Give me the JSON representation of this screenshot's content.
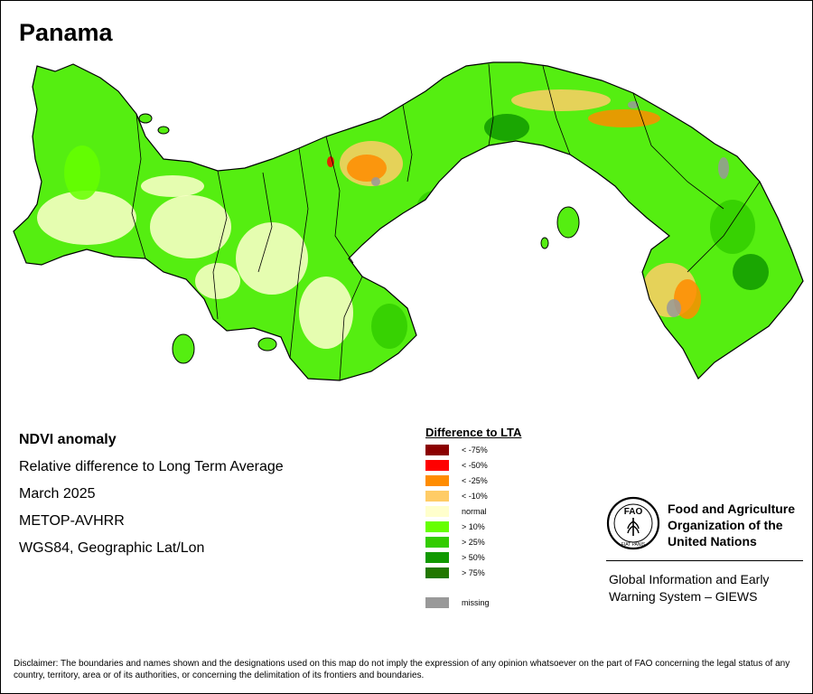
{
  "map": {
    "title": "Panama",
    "country_color": "#55ee11",
    "border_color": "#000000"
  },
  "info": {
    "indicator": "NDVI anomaly",
    "description": "Relative difference to Long Term Average",
    "date": "March 2025",
    "sensor": "METOP-AVHRR",
    "projection": "WGS84, Geographic Lat/Lon"
  },
  "legend": {
    "title": "Difference to LTA",
    "items": [
      {
        "label": "< -75%",
        "color": "#8b0000"
      },
      {
        "label": "< -50%",
        "color": "#ff0000"
      },
      {
        "label": "< -25%",
        "color": "#ff8c00"
      },
      {
        "label": "< -10%",
        "color": "#ffcc66"
      },
      {
        "label": "normal",
        "color": "#ffffcc"
      },
      {
        "label": "> 10%",
        "color": "#66ff00"
      },
      {
        "label": "> 25%",
        "color": "#33cc00"
      },
      {
        "label": "> 50%",
        "color": "#119900"
      },
      {
        "label": "> 75%",
        "color": "#227700"
      }
    ],
    "missing": {
      "label": "missing",
      "color": "#999999"
    }
  },
  "fao": {
    "org_line1": "Food and Agriculture",
    "org_line2": "Organization of the",
    "org_line3": "United Nations",
    "giews_line1": "Global Information and Early",
    "giews_line2": "Warning System – GIEWS",
    "logo_text": "FAO",
    "logo_motto": "FIAT PANIS"
  },
  "disclaimer": "Disclaimer: The boundaries and names shown and the designations used on this map do not imply the expression of any opinion whatsoever on the part of FAO concerning the legal status of any country, territory, area or of its authorities, or concerning the delimitation of its frontiers and boundaries."
}
